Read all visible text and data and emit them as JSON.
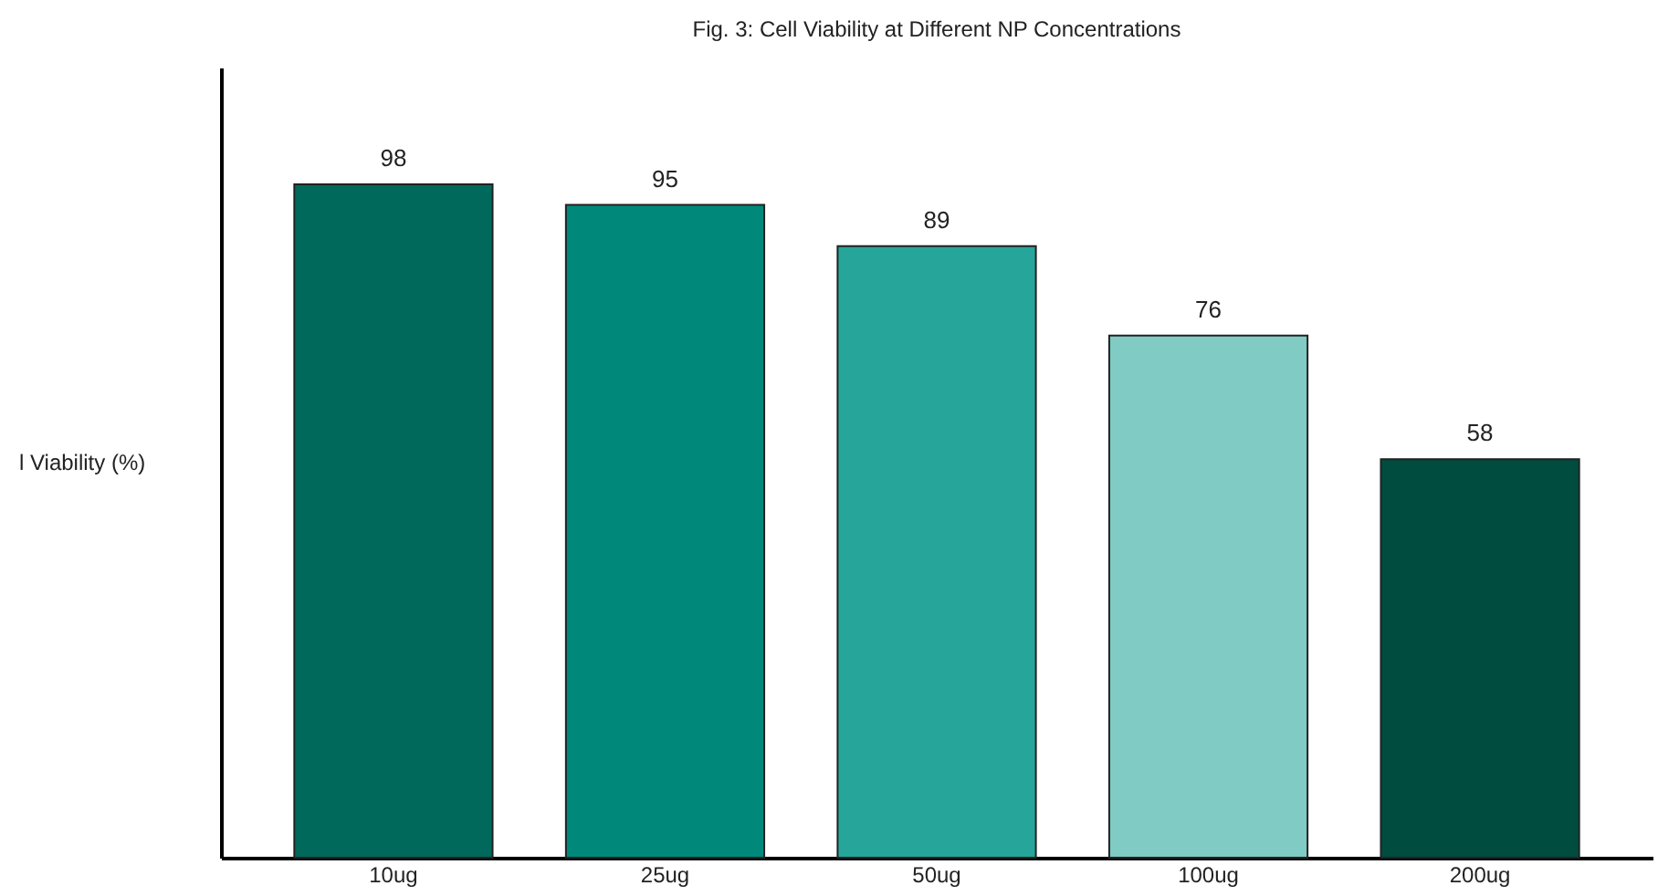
{
  "chart_data": {
    "type": "bar",
    "title": "Fig. 3: Cell Viability at Different NP Concentrations",
    "ylabel": "l Viability (%)",
    "categories": [
      "10ug",
      "25ug",
      "50ug",
      "100ug",
      "200ug"
    ],
    "values": [
      98,
      95,
      89,
      76,
      58
    ],
    "colors": [
      "#00695c",
      "#00897b",
      "#26a69a",
      "#80cbc4",
      "#004d40"
    ],
    "ylim": [
      0,
      115
    ],
    "data_labels": true
  }
}
